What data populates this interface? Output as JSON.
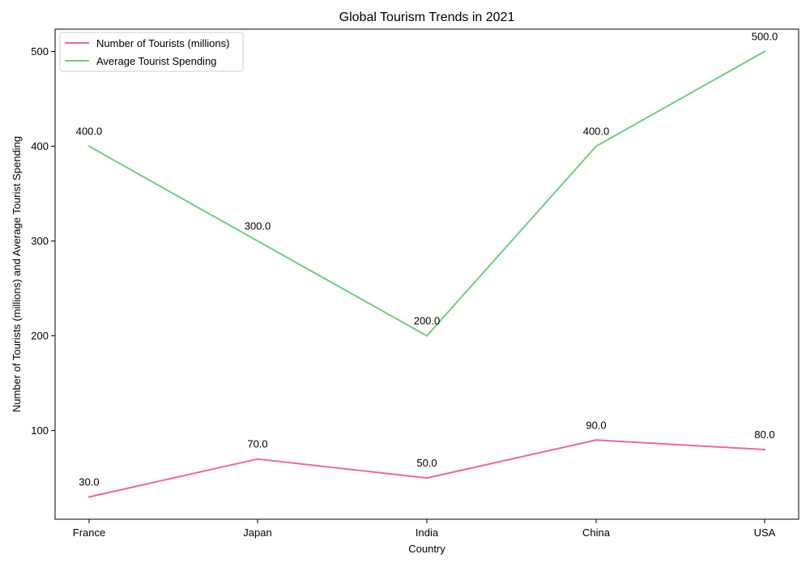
{
  "chart_data": {
    "type": "line",
    "title": "Global Tourism Trends in 2021",
    "xlabel": "Country",
    "ylabel": "Number of Tourists (millions) and Average Tourist Spending",
    "categories": [
      "France",
      "Japan",
      "India",
      "China",
      "USA"
    ],
    "series": [
      {
        "name": "Number of Tourists (millions)",
        "values": [
          30.0,
          70.0,
          50.0,
          90.0,
          80.0
        ],
        "labels": [
          "30.0",
          "70.0",
          "50.0",
          "90.0",
          "80.0"
        ],
        "color": "#f0698f"
      },
      {
        "name": "Average Tourist Spending",
        "values": [
          400.0,
          300.0,
          200.0,
          400.0,
          500.0
        ],
        "labels": [
          "400.0",
          "300.0",
          "200.0",
          "400.0",
          "500.0"
        ],
        "color": "#6ccf84"
      }
    ],
    "yticks": [
      "100",
      "200",
      "300",
      "400",
      "500"
    ],
    "ylim": [
      6.5,
      523.5
    ],
    "grid": false,
    "legend_position": "upper-left"
  }
}
